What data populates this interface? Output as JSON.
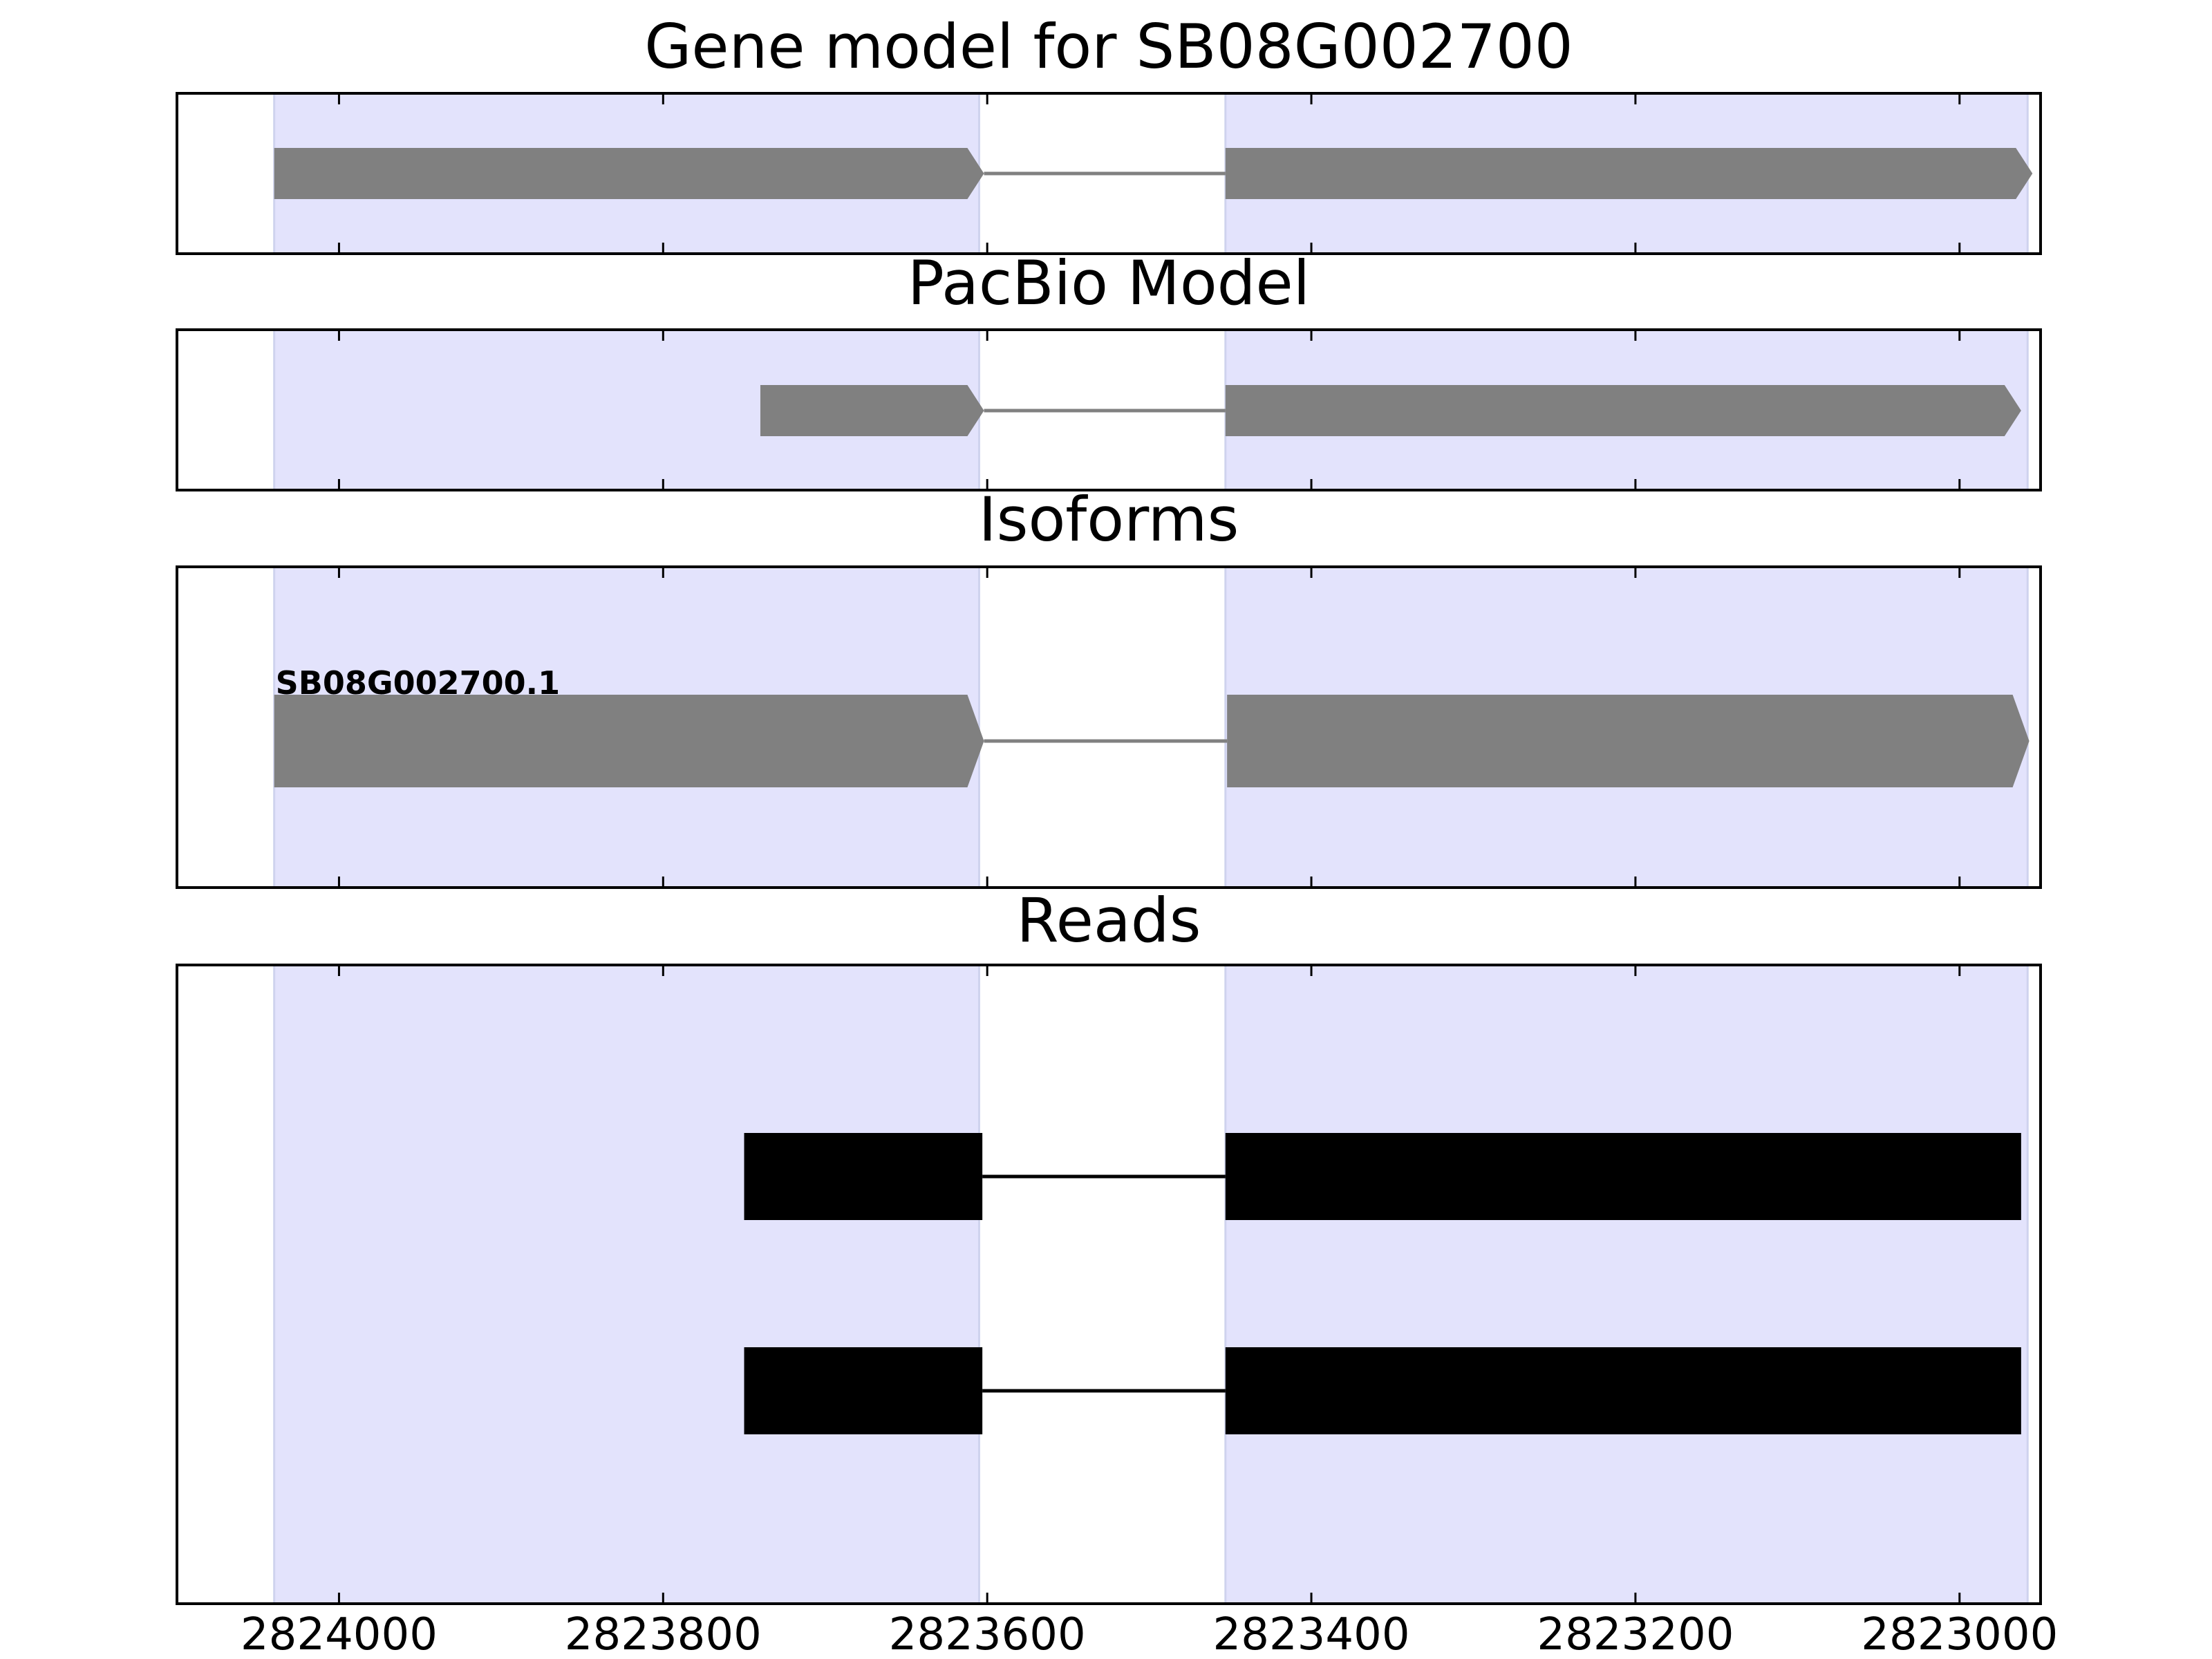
{
  "chart_data": {
    "type": "gene-structure",
    "x_axis": {
      "range": [
        2824100,
        2822950
      ],
      "reversed": true,
      "ticks": [
        2824000,
        2823800,
        2823600,
        2823400,
        2823200,
        2823000
      ],
      "tick_labels": [
        "2824000",
        "2823800",
        "2823600",
        "2823400",
        "2823200",
        "2823000"
      ]
    },
    "highlight_regions": [
      [
        2824040,
        2823605
      ],
      [
        2823453,
        2822958
      ]
    ],
    "colors": {
      "highlight": "#e3e3fc",
      "feature": "#808080",
      "read": "#000000"
    },
    "panels": [
      {
        "title": "Gene model for SB08G002700",
        "features": [
          {
            "kind": "arrow",
            "exons": [
              [
                2824040,
                2823602
              ],
              [
                2823453,
                2822955
              ]
            ],
            "strand": "-"
          }
        ]
      },
      {
        "title": "PacBio Model",
        "features": [
          {
            "kind": "arrow",
            "exons": [
              [
                2823740,
                2823602
              ],
              [
                2823453,
                2822962
              ]
            ],
            "strand": "-"
          }
        ]
      },
      {
        "title": "Isoforms",
        "features": [
          {
            "kind": "arrow",
            "label": "SB08G002700.1",
            "exons": [
              [
                2824040,
                2823602
              ],
              [
                2823452,
                2822957
              ]
            ],
            "strand": "-"
          }
        ]
      },
      {
        "title": "Reads",
        "features": [
          {
            "kind": "box",
            "exons": [
              [
                2823750,
                2823603
              ],
              [
                2823453,
                2822962
              ]
            ]
          },
          {
            "kind": "box",
            "exons": [
              [
                2823750,
                2823603
              ],
              [
                2823453,
                2822962
              ]
            ]
          }
        ]
      }
    ]
  }
}
